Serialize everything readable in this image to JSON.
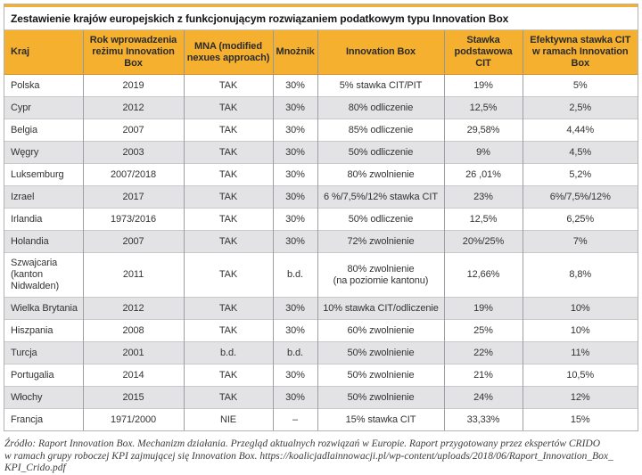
{
  "title": "Zestawienie krajów europejskich z funkcjonującym rozwiązaniem podatkowym typu Innovation Box",
  "colors": {
    "header_bg": "#F5B02F",
    "alt_row_bg": "#E3E3E5"
  },
  "table": {
    "columns": [
      "Kraj",
      "Rok wprowadzenia reżimu Innovation Box",
      "MNA (modified nexues approach)",
      "Mnożnik",
      "Innovation Box",
      "Stawka podstawowa CIT",
      "Efektywna stawka CIT w ramach Innovation Box"
    ],
    "column_keys": [
      "country",
      "year",
      "mna",
      "multiplier",
      "innovation_box",
      "base_cit",
      "effective_cit"
    ],
    "rows": [
      {
        "country": "Polska",
        "year": "2019",
        "mna": "TAK",
        "multiplier": "30%",
        "innovation_box": "5% stawka CIT/PIT",
        "base_cit": "19%",
        "effective_cit": "5%"
      },
      {
        "country": "Cypr",
        "year": "2012",
        "mna": "TAK",
        "multiplier": "30%",
        "innovation_box": "80% odliczenie",
        "base_cit": "12,5%",
        "effective_cit": "2,5%"
      },
      {
        "country": "Belgia",
        "year": "2007",
        "mna": "TAK",
        "multiplier": "30%",
        "innovation_box": "85% odliczenie",
        "base_cit": "29,58%",
        "effective_cit": "4,44%"
      },
      {
        "country": "Węgry",
        "year": "2003",
        "mna": "TAK",
        "multiplier": "30%",
        "innovation_box": "50% odliczenie",
        "base_cit": "9%",
        "effective_cit": "4,5%"
      },
      {
        "country": "Luksemburg",
        "year": "2007/2018",
        "mna": "TAK",
        "multiplier": "30%",
        "innovation_box": "80% zwolnienie",
        "base_cit": "26 ,01%",
        "effective_cit": "5,2%"
      },
      {
        "country": "Izrael",
        "year": "2017",
        "mna": "TAK",
        "multiplier": "30%",
        "innovation_box": "6 %/7,5%/12% stawka CIT",
        "base_cit": "23%",
        "effective_cit": "6%/7,5%/12%"
      },
      {
        "country": "Irlandia",
        "year": "1973/2016",
        "mna": "TAK",
        "multiplier": "30%",
        "innovation_box": "50% odliczenie",
        "base_cit": "12,5%",
        "effective_cit": "6,25%"
      },
      {
        "country": "Holandia",
        "year": "2007",
        "mna": "TAK",
        "multiplier": "30%",
        "innovation_box": "72% zwolnienie",
        "base_cit": "20%/25%",
        "effective_cit": "7%"
      },
      {
        "country": "Szwajcaria\n(kanton\nNidwalden)",
        "year": "2011",
        "mna": "TAK",
        "multiplier": "b.d.",
        "innovation_box": "80% zwolnienie\n(na poziomie kantonu)",
        "base_cit": "12,66%",
        "effective_cit": "8,8%"
      },
      {
        "country": "Wielka Brytania",
        "year": "2012",
        "mna": "TAK",
        "multiplier": "30%",
        "innovation_box": "10% stawka CIT/odliczenie",
        "base_cit": "19%",
        "effective_cit": "10%"
      },
      {
        "country": "Hiszpania",
        "year": "2008",
        "mna": "TAK",
        "multiplier": "30%",
        "innovation_box": "60% zwolnienie",
        "base_cit": "25%",
        "effective_cit": "10%"
      },
      {
        "country": "Turcja",
        "year": "2001",
        "mna": "b.d.",
        "multiplier": "b.d.",
        "innovation_box": "50% zwolnienie",
        "base_cit": "22%",
        "effective_cit": "11%"
      },
      {
        "country": "Portugalia",
        "year": "2014",
        "mna": "TAK",
        "multiplier": "30%",
        "innovation_box": "50% zwolnienie",
        "base_cit": "21%",
        "effective_cit": "10,5%"
      },
      {
        "country": "Włochy",
        "year": "2015",
        "mna": "TAK",
        "multiplier": "30%",
        "innovation_box": "50% zwolnienie",
        "base_cit": "24%",
        "effective_cit": "12%"
      },
      {
        "country": "Francja",
        "year": "1971/2000",
        "mna": "NIE",
        "multiplier": "–",
        "innovation_box": "15% stawka CIT",
        "base_cit": "33,33%",
        "effective_cit": "15%"
      }
    ]
  },
  "source": {
    "lines": [
      "Źródło: Raport Innovation Box. Mechanizm działania. Przegląd aktualnych rozwiązań w Europie. Raport przygotowany przez ekspertów CRIDO",
      "w ramach grupy roboczej KPI zajmującej się Innovation Box. https://koalicjadlainnowacji.pl/wp-content/uploads/2018/06/Raport_Innovation_Box_",
      "KPI_Crido.pdf"
    ]
  }
}
